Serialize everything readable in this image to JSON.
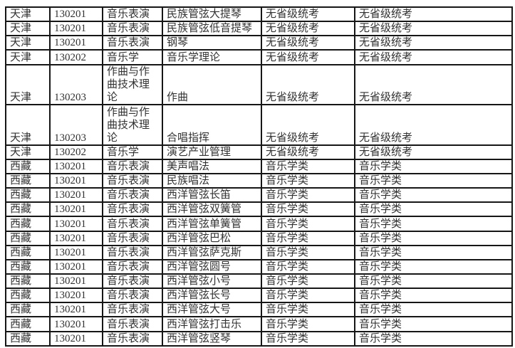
{
  "colors": {
    "background": "#ffffff",
    "border": "#161616",
    "text": "#323232"
  },
  "table": {
    "rows": [
      [
        "天津",
        "130201",
        "音乐表演",
        "民族管弦大提琴",
        "无省级统考",
        "无省级统考"
      ],
      [
        "天津",
        "130201",
        "音乐表演",
        "民族管弦低音提琴",
        "无省级统考",
        "无省级统考"
      ],
      [
        "天津",
        "130201",
        "音乐表演",
        "钢琴",
        "无省级统考",
        "无省级统考"
      ],
      [
        "天津",
        "130202",
        "音乐学",
        "音乐学理论",
        "无省级统考",
        "无省级统考"
      ],
      [
        "天津",
        "130203",
        "作曲与作曲技术理论",
        "作曲",
        "无省级统考",
        "无省级统考"
      ],
      [
        "天津",
        "130203",
        "作曲与作曲技术理论",
        "合唱指挥",
        "无省级统考",
        "无省级统考"
      ],
      [
        "天津",
        "130202",
        "音乐学",
        "演艺产业管理",
        "无省级统考",
        "无省级统考"
      ],
      [
        "西藏",
        "130201",
        "音乐表演",
        "美声唱法",
        "音乐学类",
        "音乐学类"
      ],
      [
        "西藏",
        "130201",
        "音乐表演",
        "民族唱法",
        "音乐学类",
        "音乐学类"
      ],
      [
        "西藏",
        "130201",
        "音乐表演",
        "西洋管弦长笛",
        "音乐学类",
        "音乐学类"
      ],
      [
        "西藏",
        "130201",
        "音乐表演",
        "西洋管弦双簧管",
        "音乐学类",
        "音乐学类"
      ],
      [
        "西藏",
        "130201",
        "音乐表演",
        "西洋管弦单簧管",
        "音乐学类",
        "音乐学类"
      ],
      [
        "西藏",
        "130201",
        "音乐表演",
        "西洋管弦巴松",
        "音乐学类",
        "音乐学类"
      ],
      [
        "西藏",
        "130201",
        "音乐表演",
        "西洋管弦萨克斯",
        "音乐学类",
        "音乐学类"
      ],
      [
        "西藏",
        "130201",
        "音乐表演",
        "西洋管弦圆号",
        "音乐学类",
        "音乐学类"
      ],
      [
        "西藏",
        "130201",
        "音乐表演",
        "西洋管弦小号",
        "音乐学类",
        "音乐学类"
      ],
      [
        "西藏",
        "130201",
        "音乐表演",
        "西洋管弦长号",
        "音乐学类",
        "音乐学类"
      ],
      [
        "西藏",
        "130201",
        "音乐表演",
        "西洋管弦大号",
        "音乐学类",
        "音乐学类"
      ],
      [
        "西藏",
        "130201",
        "音乐表演",
        "西洋管弦打击乐",
        "音乐学类",
        "音乐学类"
      ],
      [
        "西藏",
        "130201",
        "音乐表演",
        "西洋管弦竖琴",
        "音乐学类",
        "音乐学类"
      ]
    ]
  }
}
